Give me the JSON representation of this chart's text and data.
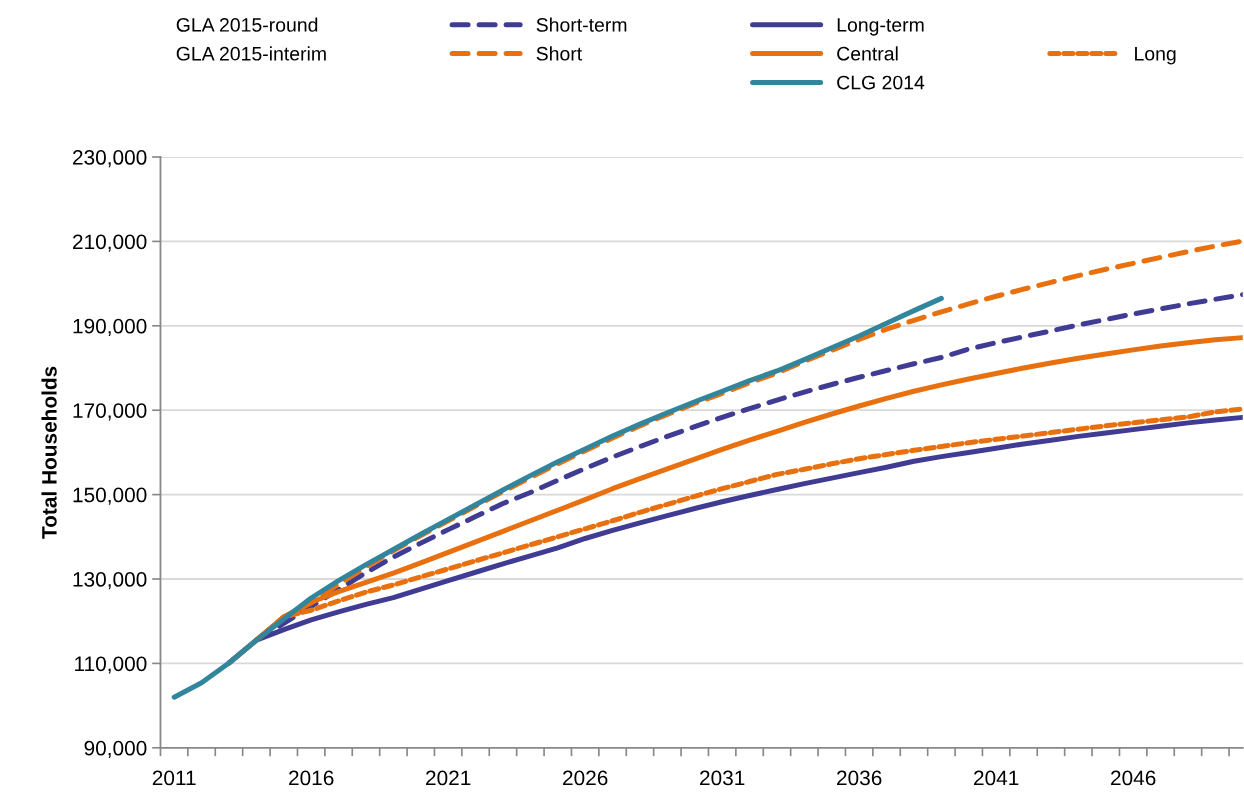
{
  "chart_data": {
    "type": "line",
    "ylabel": "Total Households",
    "annotations": [
      "GLA 2015-round",
      "GLA 2015-interim"
    ],
    "x": [
      2011,
      2012,
      2013,
      2014,
      2015,
      2016,
      2017,
      2018,
      2019,
      2020,
      2021,
      2022,
      2023,
      2024,
      2025,
      2026,
      2027,
      2028,
      2029,
      2030,
      2031,
      2032,
      2033,
      2034,
      2035,
      2036,
      2037,
      2038,
      2039,
      2040,
      2041,
      2042,
      2043,
      2044,
      2045,
      2046,
      2047,
      2048,
      2049,
      2050
    ],
    "series": [
      {
        "name": "Short-term",
        "color": "#403c93",
        "line_style": "dashed",
        "values": [
          null,
          null,
          null,
          115500,
          119500,
          123500,
          127500,
          131500,
          135200,
          138500,
          141700,
          144800,
          147900,
          150500,
          153400,
          156200,
          158900,
          161400,
          163800,
          166100,
          168300,
          170400,
          172400,
          174300,
          176100,
          177800,
          179400,
          181000,
          182500,
          184500,
          186000,
          187400,
          188800,
          190200,
          191500,
          192800,
          194000,
          195200,
          196300,
          197400
        ]
      },
      {
        "name": "Long-term",
        "color": "#403c93",
        "line_style": "solid",
        "values": [
          null,
          null,
          110100,
          115500,
          118000,
          120300,
          122200,
          124000,
          125600,
          127600,
          129600,
          131600,
          133600,
          135500,
          137400,
          139600,
          141500,
          143300,
          145000,
          146700,
          148300,
          149800,
          151200,
          152600,
          153900,
          155200,
          156500,
          157900,
          159000,
          160000,
          161000,
          162000,
          162900,
          163800,
          164600,
          165400,
          166200,
          167000,
          167700,
          168300
        ]
      },
      {
        "name": "Short",
        "color": "#e8700f",
        "line_style": "dashed",
        "values": [
          null,
          null,
          null,
          115500,
          121000,
          124300,
          128800,
          132800,
          136700,
          140300,
          143800,
          147300,
          150700,
          154000,
          157300,
          160400,
          163400,
          166300,
          169000,
          171600,
          174000,
          176500,
          178800,
          181600,
          184200,
          186800,
          189200,
          191300,
          193300,
          195200,
          197000,
          198700,
          200300,
          201900,
          203400,
          204800,
          206200,
          207600,
          208900,
          210100
        ]
      },
      {
        "name": "Central",
        "color": "#e8700f",
        "line_style": "solid",
        "values": [
          null,
          null,
          110100,
          115500,
          121000,
          124500,
          127000,
          129200,
          131400,
          133800,
          136300,
          138800,
          141300,
          143800,
          146300,
          148800,
          151400,
          153800,
          156100,
          158400,
          160700,
          162900,
          165000,
          167100,
          169100,
          171000,
          172800,
          174500,
          176000,
          177400,
          178700,
          180000,
          181200,
          182300,
          183300,
          184300,
          185200,
          186000,
          186700,
          187200
        ]
      },
      {
        "name": "Long",
        "color": "#e8700f",
        "line_style": "dotted",
        "values": [
          null,
          null,
          null,
          115500,
          121000,
          122600,
          124800,
          126900,
          128600,
          130500,
          132400,
          134300,
          136200,
          138100,
          140000,
          141900,
          143800,
          145800,
          147700,
          149600,
          151400,
          153100,
          154800,
          156000,
          157300,
          158500,
          159500,
          160500,
          161400,
          162300,
          163100,
          163900,
          164700,
          165500,
          166300,
          167000,
          167700,
          168400,
          169600,
          170300
        ]
      },
      {
        "name": "CLG 2014",
        "color": "#31859c",
        "line_style": "solid",
        "values": [
          102000,
          105400,
          110100,
          115500,
          120500,
          125500,
          129600,
          133400,
          137000,
          140600,
          144100,
          147600,
          151100,
          154500,
          157800,
          160800,
          163900,
          166700,
          169400,
          172000,
          174500,
          177000,
          179300,
          182000,
          184800,
          187600,
          190600,
          193600,
          196500,
          null,
          null,
          null,
          null,
          null,
          null,
          null,
          null,
          null,
          null,
          null
        ]
      }
    ],
    "xlim": [
      2010.5,
      2050
    ],
    "xticks": [
      {
        "value": 2010.5,
        "label": null
      },
      2011,
      {
        "value": 2011.5,
        "label": null
      },
      {
        "value": 2012.5,
        "label": null
      },
      {
        "value": 2013.5,
        "label": null
      },
      {
        "value": 2014.5,
        "label": null
      },
      {
        "value": 2015.5,
        "label": null
      },
      2016,
      {
        "value": 2016.5,
        "label": null
      },
      {
        "value": 2017.5,
        "label": null
      },
      {
        "value": 2018.5,
        "label": null
      },
      {
        "value": 2019.5,
        "label": null
      },
      {
        "value": 2020.5,
        "label": null
      },
      2021,
      {
        "value": 2021.5,
        "label": null
      },
      {
        "value": 2022.5,
        "label": null
      },
      {
        "value": 2023.5,
        "label": null
      },
      {
        "value": 2024.5,
        "label": null
      },
      {
        "value": 2025.5,
        "label": null
      },
      2026,
      {
        "value": 2026.5,
        "label": null
      },
      {
        "value": 2027.5,
        "label": null
      },
      {
        "value": 2028.5,
        "label": null
      },
      {
        "value": 2029.5,
        "label": null
      },
      {
        "value": 2030.5,
        "label": null
      },
      2031,
      {
        "value": 2031.5,
        "label": null
      },
      {
        "value": 2032.5,
        "label": null
      },
      {
        "value": 2033.5,
        "label": null
      },
      {
        "value": 2034.5,
        "label": null
      },
      {
        "value": 2035.5,
        "label": null
      },
      2036,
      {
        "value": 2036.5,
        "label": null
      },
      {
        "value": 2037.5,
        "label": null
      },
      {
        "value": 2038.5,
        "label": null
      },
      {
        "value": 2039.5,
        "label": null
      },
      {
        "value": 2040.5,
        "label": null
      },
      2041,
      {
        "value": 2041.5,
        "label": null
      },
      {
        "value": 2042.5,
        "label": null
      },
      {
        "value": 2043.5,
        "label": null
      },
      {
        "value": 2044.5,
        "label": null
      },
      {
        "value": 2045.5,
        "label": null
      },
      2046,
      {
        "value": 2046.5,
        "label": null
      },
      {
        "value": 2047.5,
        "label": null
      },
      {
        "value": 2048.5,
        "label": null
      },
      {
        "value": 2049.5,
        "label": null
      }
    ],
    "ylim": [
      90000,
      230000
    ],
    "yticks": [
      {
        "value": 90000,
        "label": "90,000"
      },
      {
        "value": 110000,
        "label": "110,000"
      },
      {
        "value": 130000,
        "label": "130,000"
      },
      {
        "value": 150000,
        "label": "150,000"
      },
      {
        "value": 170000,
        "label": "170,000"
      },
      {
        "value": 190000,
        "label": "190,000"
      },
      {
        "value": 210000,
        "label": "210,000"
      },
      {
        "value": 230000,
        "label": "230,000"
      }
    ],
    "grid": "y",
    "legend": "top",
    "marker": "none"
  }
}
